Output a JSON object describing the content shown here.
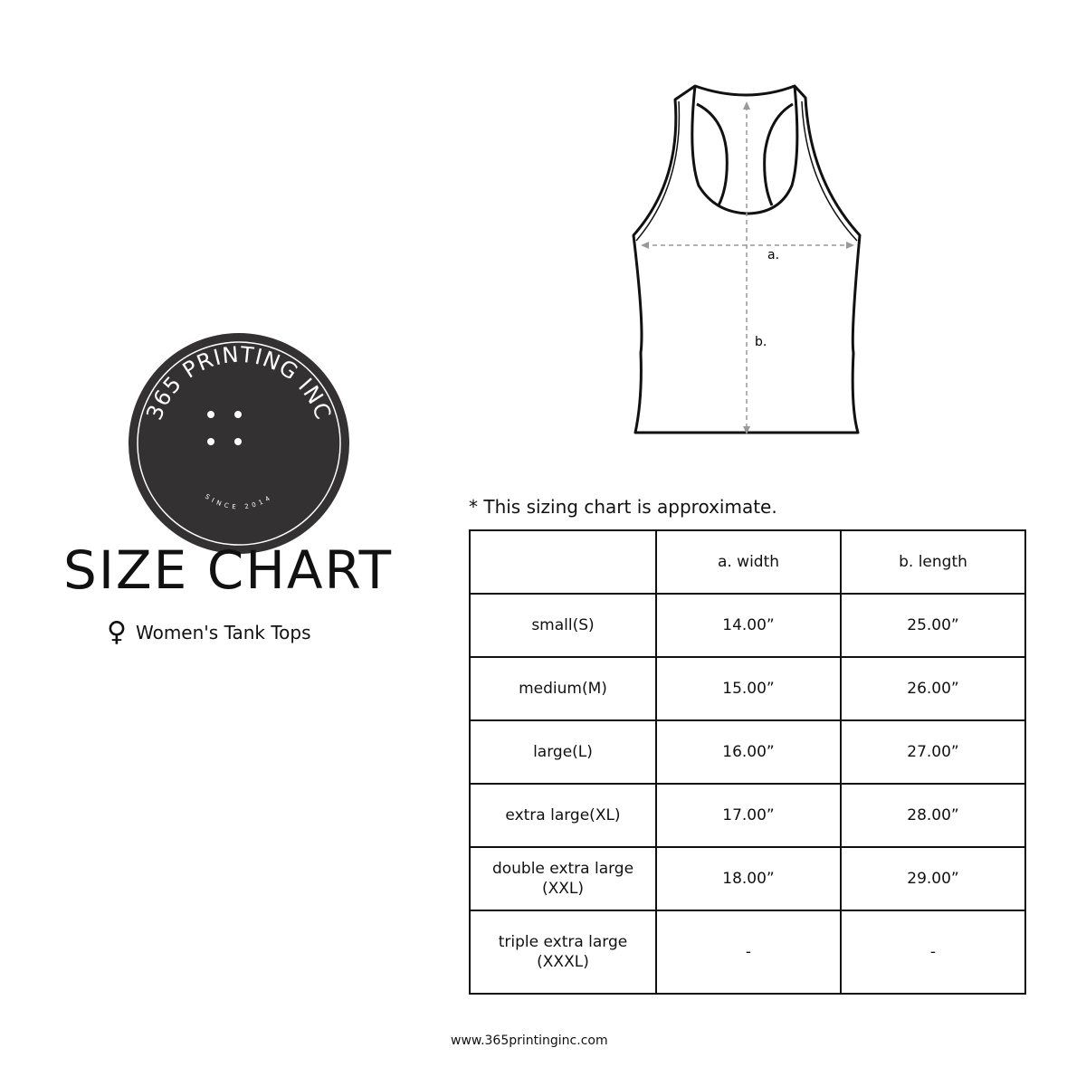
{
  "logo": {
    "text": "365 PRINTING INC",
    "since": "SINCE 2014",
    "color": "#333131"
  },
  "title": "SIZE CHART",
  "subtitle": {
    "icon": "female-symbol-icon",
    "symbol": "♀",
    "text": "Women's Tank Tops"
  },
  "diagram": {
    "label_a": "a.",
    "label_b": "b."
  },
  "note": "* This sizing chart is approximate.",
  "table": {
    "headers": [
      "",
      "a. width",
      "b. length"
    ],
    "rows": [
      {
        "size": "small(S)",
        "width": "14.00”",
        "length": "25.00”"
      },
      {
        "size": "medium(M)",
        "width": "15.00”",
        "length": "26.00”"
      },
      {
        "size": "large(L)",
        "width": "16.00”",
        "length": "27.00”"
      },
      {
        "size": "extra large(XL)",
        "width": "17.00”",
        "length": "28.00”"
      },
      {
        "size": "double extra large (XXL)",
        "width": "18.00”",
        "length": "29.00”"
      },
      {
        "size": "triple extra large (XXXL)",
        "width": "-",
        "length": "-"
      }
    ]
  },
  "url": "www.365printinginc.com"
}
